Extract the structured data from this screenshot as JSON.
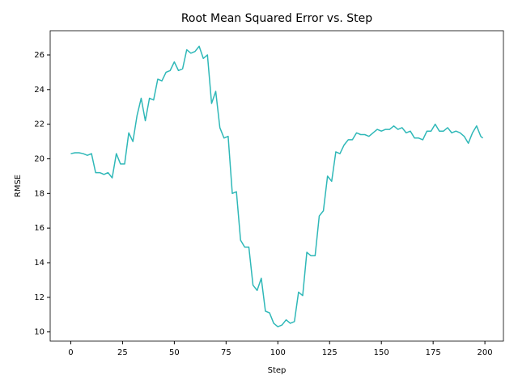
{
  "chart_data": {
    "type": "line",
    "title": "Root Mean Squared Error vs. Step",
    "x_label": "Step",
    "y_label": "RMSE",
    "x": [
      0,
      2,
      4,
      6,
      8,
      10,
      12,
      14,
      16,
      18,
      20,
      22,
      24,
      26,
      28,
      30,
      32,
      34,
      36,
      38,
      40,
      42,
      44,
      46,
      48,
      50,
      52,
      54,
      56,
      58,
      60,
      62,
      64,
      66,
      68,
      70,
      72,
      74,
      76,
      78,
      80,
      82,
      84,
      86,
      88,
      90,
      92,
      94,
      96,
      98,
      100,
      102,
      104,
      106,
      108,
      110,
      112,
      114,
      116,
      118,
      120,
      122,
      124,
      126,
      128,
      130,
      132,
      134,
      136,
      138,
      140,
      142,
      144,
      146,
      148,
      150,
      152,
      154,
      156,
      158,
      160,
      162,
      164,
      166,
      168,
      170,
      172,
      174,
      176,
      178,
      180,
      182,
      184,
      186,
      188,
      190,
      192,
      194,
      196,
      198,
      199
    ],
    "series": [
      {
        "color": "#2fb8b8",
        "values": [
          20.3,
          20.35,
          20.35,
          20.3,
          20.2,
          20.3,
          19.2,
          19.2,
          19.1,
          19.2,
          18.9,
          20.3,
          19.7,
          19.7,
          21.5,
          21.0,
          22.5,
          23.5,
          22.2,
          23.5,
          23.4,
          24.6,
          24.5,
          25.0,
          25.1,
          25.6,
          25.1,
          25.2,
          26.3,
          26.1,
          26.2,
          26.5,
          25.8,
          26.0,
          23.2,
          23.9,
          21.8,
          21.2,
          21.3,
          18.0,
          18.1,
          15.3,
          14.9,
          14.9,
          12.7,
          12.4,
          13.1,
          11.2,
          11.1,
          10.5,
          10.3,
          10.4,
          10.7,
          10.5,
          10.6,
          12.3,
          12.1,
          14.6,
          14.4,
          14.4,
          16.7,
          17.0,
          19.0,
          18.7,
          20.4,
          20.3,
          20.8,
          21.1,
          21.1,
          21.5,
          21.4,
          21.4,
          21.3,
          21.5,
          21.7,
          21.6,
          21.7,
          21.7,
          21.9,
          21.7,
          21.8,
          21.5,
          21.6,
          21.2,
          21.2,
          21.1,
          21.6,
          21.6,
          22.0,
          21.6,
          21.6,
          21.8,
          21.5,
          21.6,
          21.5,
          21.3,
          20.9,
          21.5,
          21.9,
          21.3,
          21.2
        ]
      }
    ],
    "xlim": [
      -9.95,
      208.95
    ],
    "xticks": [
      0,
      25,
      50,
      75,
      100,
      125,
      150,
      175,
      200
    ],
    "ylim": [
      9.47,
      27.4
    ],
    "yticks": [
      10,
      12,
      14,
      16,
      18,
      20,
      22,
      24,
      26
    ]
  }
}
